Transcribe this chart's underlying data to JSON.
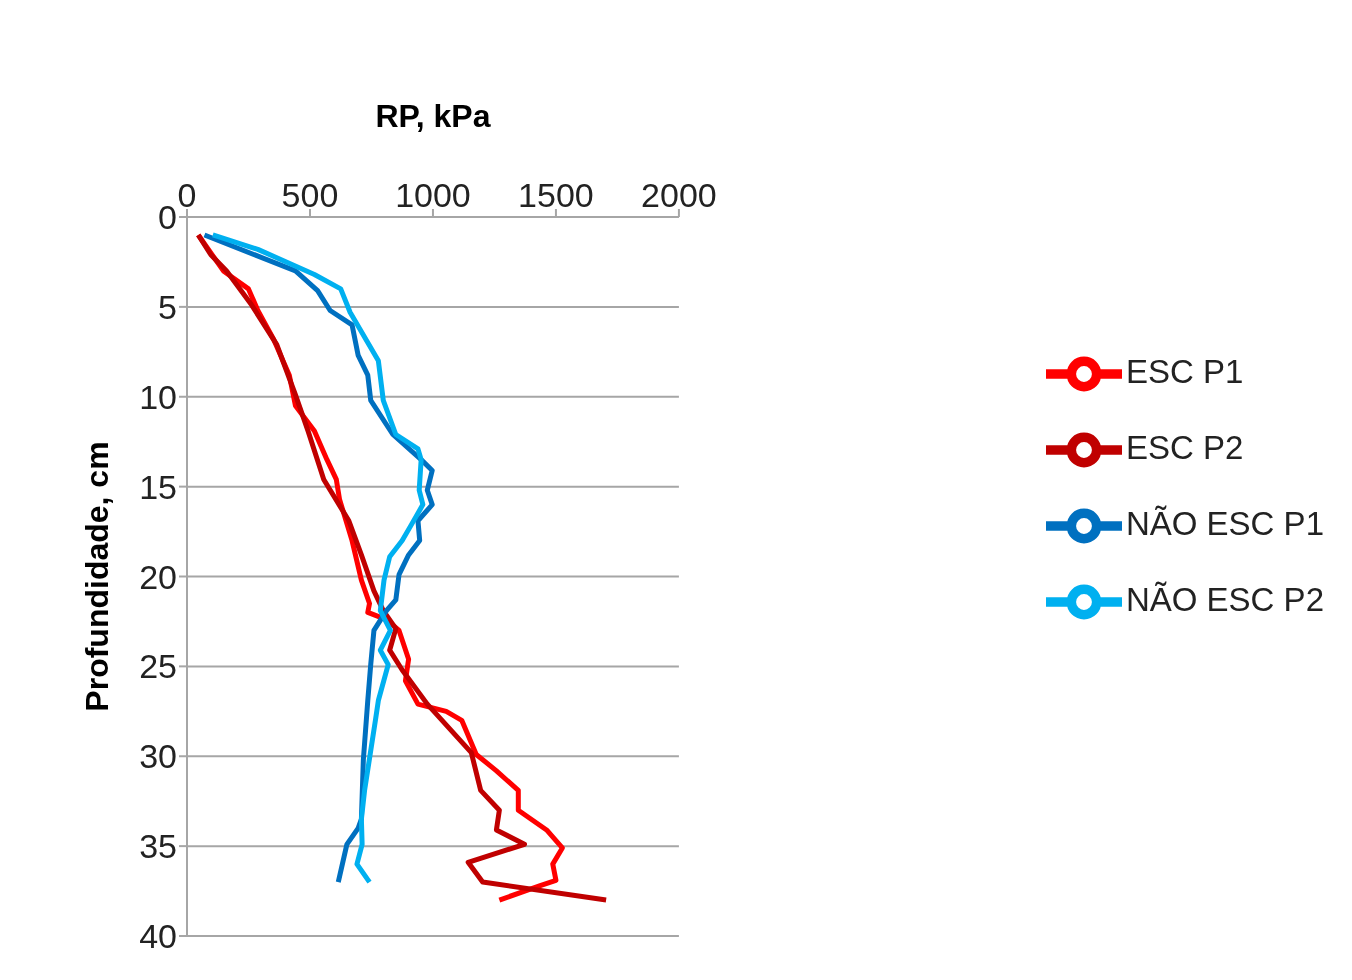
{
  "chart_data": {
    "type": "line",
    "xlabel": "RP, kPa",
    "ylabel": "Profundidade, cm",
    "xlim": [
      0,
      2000
    ],
    "xticks": [
      0,
      500,
      1000,
      1500,
      2000
    ],
    "ylim": [
      40,
      0
    ],
    "yticks": [
      0,
      5,
      10,
      15,
      20,
      25,
      30,
      35,
      40
    ],
    "grid": "y",
    "legend": "right",
    "marker": "none",
    "series": [
      {
        "name": "ESC P1",
        "color": "#ff0000",
        "x": [
          46,
          148,
          250,
          288,
          352,
          416,
          441,
          518,
          569,
          607,
          620,
          671,
          709,
          742,
          735,
          811,
          862,
          901,
          888,
          939,
          1054,
          1117,
          1176,
          1257,
          1347,
          1347,
          1462,
          1526,
          1487,
          1500,
          1436,
          1270
        ],
        "values": [
          1,
          3,
          4,
          5.2,
          6.8,
          8.8,
          10.5,
          11.9,
          13.5,
          14.6,
          15.7,
          18,
          20.2,
          21.5,
          22,
          22.4,
          23,
          24.6,
          25.8,
          27.1,
          27.5,
          28,
          29.9,
          30.8,
          31.9,
          33,
          34.1,
          35.1,
          36,
          36.9,
          37.2,
          38
        ]
      },
      {
        "name": "ESC P2",
        "color": "#c00000",
        "x": [
          46,
          97,
          161,
          263,
          365,
          441,
          492,
          556,
          658,
          709,
          760,
          798,
          849,
          824,
          875,
          977,
          1156,
          1194,
          1270,
          1258,
          1372,
          1143,
          1202,
          1704
        ],
        "values": [
          1,
          2.1,
          3,
          4.9,
          7.1,
          9.9,
          11.9,
          14.6,
          16.9,
          18.8,
          20.8,
          21.9,
          22.9,
          24.1,
          25.2,
          27.1,
          29.8,
          31.9,
          33,
          34.1,
          34.9,
          35.9,
          37,
          38
        ]
      },
      {
        "name": "NÃO ESC P1",
        "color": "#0070c0",
        "x": [
          71,
          441,
          531,
          582,
          671,
          696,
          735,
          747,
          837,
          952,
          997,
          977,
          997,
          939,
          946,
          901,
          862,
          849,
          811,
          760,
          747,
          735,
          717,
          709,
          696,
          650,
          615
        ],
        "values": [
          1,
          3,
          4.1,
          5.2,
          6,
          7.7,
          8.8,
          10.2,
          12.1,
          13.5,
          14.1,
          15.2,
          16,
          16.9,
          18,
          18.8,
          19.9,
          21.3,
          21.9,
          23,
          24.9,
          26.9,
          30.2,
          33.5,
          34,
          34.9,
          37
        ]
      },
      {
        "name": "NÃO ESC P2",
        "color": "#00b0f0",
        "x": [
          105,
          288,
          518,
          625,
          663,
          778,
          798,
          849,
          939,
          952,
          944,
          959,
          913,
          875,
          824,
          801,
          786,
          827,
          786,
          818,
          778,
          766,
          722,
          709,
          712,
          691,
          742
        ],
        "values": [
          1,
          1.8,
          3.2,
          4,
          5.3,
          8,
          10.2,
          12.1,
          12.9,
          13.5,
          15.2,
          16,
          17.1,
          18,
          18.9,
          20.2,
          21.9,
          23,
          24.1,
          24.9,
          26.9,
          28,
          31.9,
          33.5,
          34.9,
          36,
          37
        ]
      }
    ]
  }
}
